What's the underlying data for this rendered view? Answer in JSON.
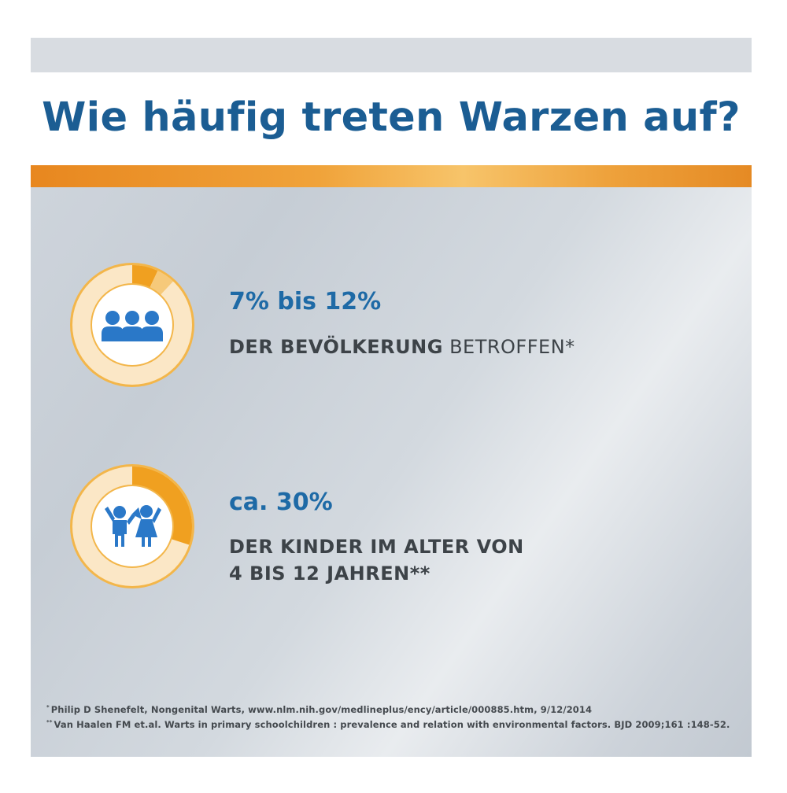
{
  "title": "Wie häufig treten Warzen auf?",
  "colors": {
    "title": "#1b5d93",
    "accent_orange": "#f0a020",
    "icon_blue": "#2a78c8",
    "text_dark": "#3d4348"
  },
  "stats": [
    {
      "value": "7% bis 12%",
      "desc_bold": "DER BEVÖLKERUNG",
      "desc_light": " BETROFFEN*",
      "icon": "group-of-people-icon",
      "ring_fill_fraction": [
        0.07,
        0.12
      ]
    },
    {
      "value": "ca. 30%",
      "desc_line1": "DER KINDER IM ALTER VON",
      "desc_line2": "4 BIS 12 JAHREN**",
      "icon": "children-icon",
      "ring_fill_fraction": 0.3
    }
  ],
  "footnotes": [
    {
      "marker": "*",
      "text": "Philip D Shenefelt, Nongenital Warts, www.nlm.nih.gov/medlineplus/ency/article/000885.htm, 9/12/2014"
    },
    {
      "marker": "**",
      "text": "Van Haalen FM et.al. Warts in primary schoolchildren : prevalence and relation with environmental factors. BJD 2009;161 :148-52."
    }
  ]
}
